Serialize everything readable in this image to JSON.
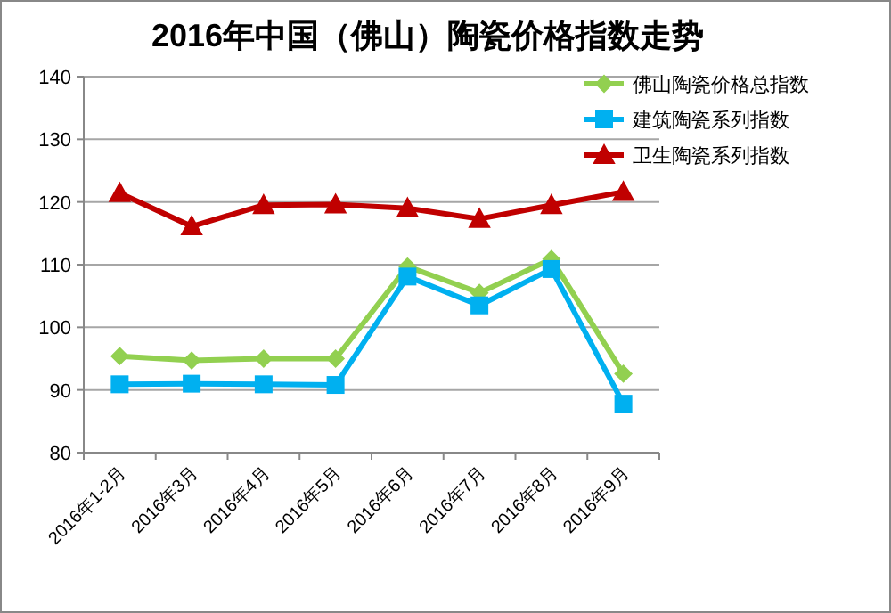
{
  "chart_data": {
    "type": "line",
    "title": "2016年中国（佛山）陶瓷价格指数走势",
    "categories": [
      "2016年1-2月",
      "2016年3月",
      "2016年4月",
      "2016年5月",
      "2016年6月",
      "2016年7月",
      "2016年8月",
      "2016年9月"
    ],
    "series": [
      {
        "name": "佛山陶瓷价格总指数",
        "color": "#92d050",
        "marker": "diamond",
        "values": [
          95.4,
          94.7,
          95.0,
          95.0,
          109.7,
          105.5,
          110.9,
          92.6
        ]
      },
      {
        "name": "建筑陶瓷系列指数",
        "color": "#00b0f0",
        "marker": "square",
        "values": [
          90.9,
          91.0,
          90.9,
          90.8,
          108.1,
          103.5,
          109.3,
          87.8
        ]
      },
      {
        "name": "卫生陶瓷系列指数",
        "color": "#c00000",
        "marker": "triangle",
        "values": [
          121.4,
          116.1,
          119.5,
          119.6,
          119.0,
          117.3,
          119.5,
          121.6
        ]
      }
    ],
    "ylim": [
      80,
      140
    ],
    "yticks": [
      80,
      90,
      100,
      110,
      120,
      130,
      140
    ],
    "grid": "y",
    "legend": "top right"
  }
}
